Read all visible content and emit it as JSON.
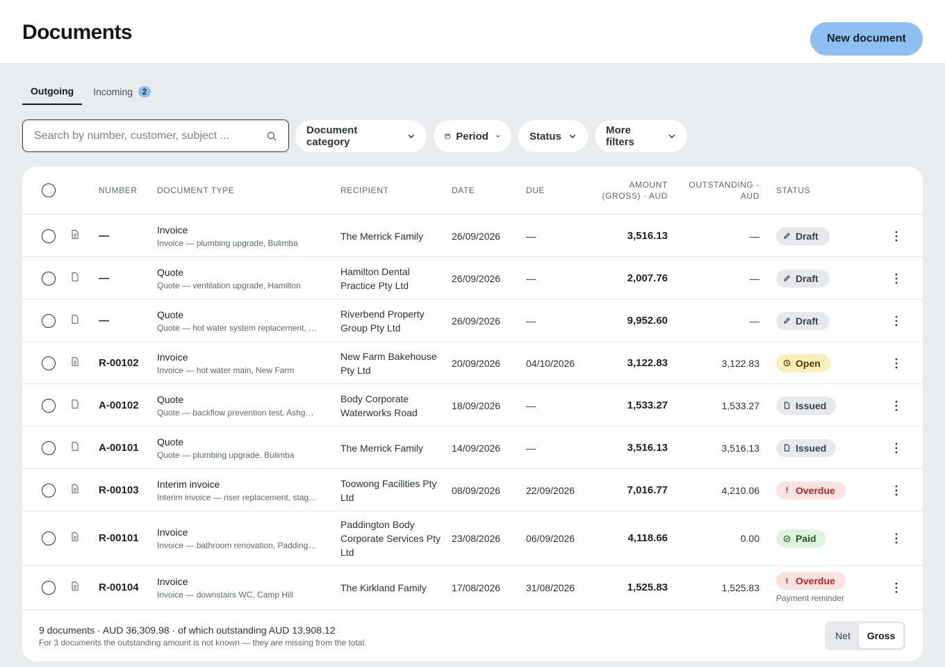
{
  "header": {
    "title": "Documents",
    "new_button": "New document"
  },
  "tabs": [
    {
      "label": "Outgoing",
      "active": true
    },
    {
      "label": "Incoming",
      "badge": "2",
      "active": false
    }
  ],
  "search": {
    "placeholder": "Search by number, customer, subject ...",
    "value": "",
    "icon": "search-icon"
  },
  "filters": [
    {
      "label": "Document category",
      "icon": "chevron-down-icon"
    },
    {
      "label": "Period",
      "icon": "calendar-icon"
    },
    {
      "label": "Status",
      "icon": "chevron-down-icon"
    },
    {
      "label": "More filters",
      "icon": "chevron-down-icon"
    }
  ],
  "table": {
    "columns": {
      "number": "Number",
      "document_type": "Document type",
      "recipient": "Recipient",
      "date": "Date",
      "due": "Due",
      "amount_line1": "Amount",
      "amount_line2": "(gross) · AUD",
      "outstanding_line1": "Outstanding ·",
      "outstanding_line2": "AUD",
      "status": "Status"
    },
    "rows": [
      {
        "number": "—",
        "type": "Invoice",
        "subject": "Invoice — plumbing upgrade, Bulimba",
        "recipient": "The Merrick Family",
        "date": "26/09/2026",
        "due": "—",
        "amount": "3,516.13",
        "outstanding": "—",
        "status": "Draft",
        "status_kind": "draft",
        "doc_icon": "invoice-icon"
      },
      {
        "number": "—",
        "type": "Quote",
        "subject": "Quote — ventilation upgrade, Hamilton",
        "recipient": "Hamilton Dental Practice Pty Ltd",
        "date": "26/09/2026",
        "due": "—",
        "amount": "2,007.76",
        "outstanding": "—",
        "status": "Draft",
        "status_kind": "draft",
        "doc_icon": "quote-icon"
      },
      {
        "number": "—",
        "type": "Quote",
        "subject": "Quote — hot water system replacement, …",
        "recipient": "Riverbend Property Group Pty Ltd",
        "date": "26/09/2026",
        "due": "—",
        "amount": "9,952.60",
        "outstanding": "—",
        "status": "Draft",
        "status_kind": "draft",
        "doc_icon": "quote-icon"
      },
      {
        "number": "R-00102",
        "type": "Invoice",
        "subject": "Invoice — hot water main, New Farm",
        "recipient": "New Farm Bakehouse Pty Ltd",
        "date": "20/09/2026",
        "due": "04/10/2026",
        "amount": "3,122.83",
        "outstanding": "3,122.83",
        "status": "Open",
        "status_kind": "open",
        "doc_icon": "invoice-icon"
      },
      {
        "number": "A-00102",
        "type": "Quote",
        "subject": "Quote — backflow prevention test, Ashg…",
        "recipient": "Body Corporate Waterworks Road",
        "date": "18/09/2026",
        "due": "—",
        "amount": "1,533.27",
        "outstanding": "1,533.27",
        "status": "Issued",
        "status_kind": "issued",
        "doc_icon": "quote-icon"
      },
      {
        "number": "A-00101",
        "type": "Quote",
        "subject": "Quote — plumbing upgrade, Bulimba",
        "recipient": "The Merrick Family",
        "date": "14/09/2026",
        "due": "—",
        "amount": "3,516.13",
        "outstanding": "3,516.13",
        "status": "Issued",
        "status_kind": "issued",
        "doc_icon": "quote-icon"
      },
      {
        "number": "R-00103",
        "type": "Interim invoice",
        "subject": "Interim invoice — riser replacement, stag…",
        "recipient": "Toowong Facilities Pty Ltd",
        "date": "08/09/2026",
        "due": "22/09/2026",
        "amount": "7,016.77",
        "outstanding": "4,210.06",
        "status": "Overdue",
        "status_kind": "overdue",
        "doc_icon": "invoice-icon"
      },
      {
        "number": "R-00101",
        "type": "Invoice",
        "subject": "Invoice — bathroom renovation, Padding…",
        "recipient": "Paddington Body Corporate Services Pty Ltd",
        "date": "23/08/2026",
        "due": "06/09/2026",
        "amount": "4,118.66",
        "outstanding": "0.00",
        "status": "Paid",
        "status_kind": "paid",
        "doc_icon": "invoice-icon"
      },
      {
        "number": "R-00104",
        "type": "Invoice",
        "subject": "Invoice — downstairs WC, Camp Hill",
        "recipient": "The Kirkland Family",
        "date": "17/08/2026",
        "due": "31/08/2026",
        "amount": "1,525.83",
        "outstanding": "1,525.83",
        "status": "Overdue",
        "status_kind": "overdue",
        "note": "Payment reminder",
        "doc_icon": "invoice-icon"
      }
    ]
  },
  "footer": {
    "summary": "9 documents · AUD 36,309.98 · of which outstanding AUD 13,908.12",
    "note": "For 3 documents the outstanding amount is not known — they are missing from the total.",
    "toggle": {
      "net": "Net",
      "gross": "Gross",
      "selected": "Gross"
    }
  },
  "colors": {
    "accent": "#8fbff0",
    "draft": "#e6e8eb",
    "open": "#fbefb8",
    "overdue": "#fbe2e2",
    "paid": "#dcf3dd",
    "background": "#e9ecef"
  }
}
